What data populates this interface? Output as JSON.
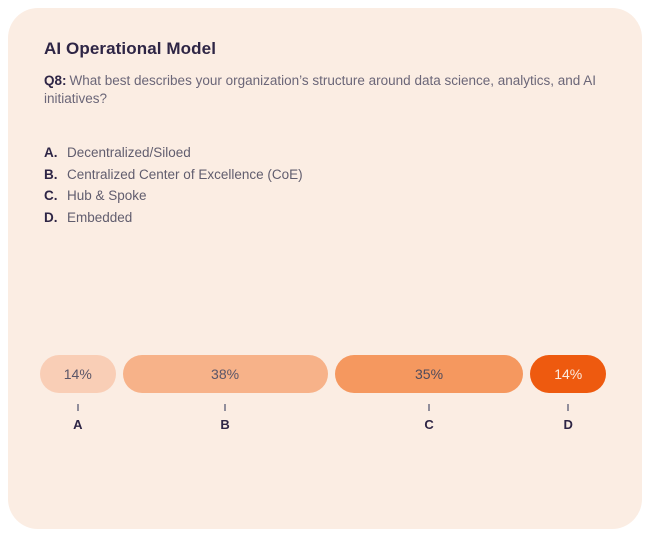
{
  "card": {
    "title": "AI Operational Model",
    "question_label": "Q8:",
    "question_text": "What best describes your organization’s structure around data science, analytics, and AI initiatives?",
    "options": [
      {
        "letter": "A.",
        "text": "Decentralized/Siloed"
      },
      {
        "letter": "B.",
        "text": "Centralized Center of Excellence (CoE)"
      },
      {
        "letter": "C.",
        "text": "Hub & Spoke"
      },
      {
        "letter": "D.",
        "text": "Embedded"
      }
    ]
  },
  "chart_data": {
    "type": "bar",
    "variant": "horizontal-stacked-pills",
    "categories": [
      "A",
      "B",
      "C",
      "D"
    ],
    "values": [
      14,
      38,
      35,
      14
    ],
    "labels": [
      "14%",
      "38%",
      "35%",
      "14%"
    ],
    "segment_colors": [
      "#F9CEB6",
      "#F7B289",
      "#F5985F",
      "#EE5A0F"
    ],
    "label_colors": [
      "#5A5568",
      "#5A5568",
      "#4E4A5B",
      "#FBEDE3"
    ],
    "tick_color": "#918E9B",
    "axis_letter_color": "#2E2545"
  },
  "colors": {
    "page_background": "#FFFFFF",
    "card_background": "#FBEDE3",
    "title_text": "#2E2545",
    "body_text": "#6B6678"
  }
}
